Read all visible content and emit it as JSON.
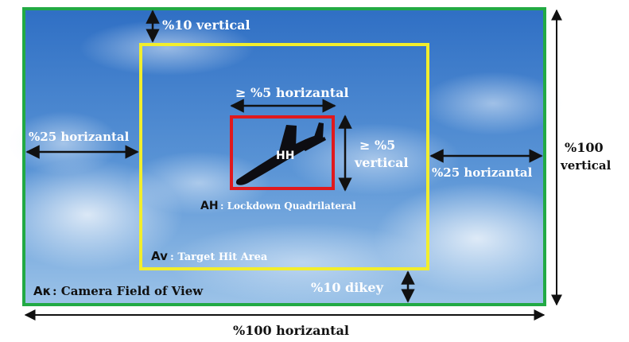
{
  "colors": {
    "camera_border": "#22aa44",
    "target_border": "#f2ee2c",
    "lock_border": "#e0191d",
    "arrow": "#111111",
    "sky_top": "#2f6fc4",
    "sky_bottom": "#9cc3e8",
    "text_light": "#ffffff",
    "text_dark": "#111111"
  },
  "icons": {
    "aircraft": "airplane-silhouette-icon"
  },
  "regions": {
    "camera": {
      "prefix": "Aκ",
      "text": ": Camera Field of View"
    },
    "target": {
      "prefix": "Av",
      "text": ": Target Hit Area"
    },
    "lockdown": {
      "prefix": "AH",
      "text": ": Lockdown Quadrilateral"
    }
  },
  "aircraft_label": "HH",
  "dimensions": {
    "top_vertical": "%10 vertical",
    "left_horizontal": "%25 horizantal",
    "right_horizontal": "%25 horizantal",
    "bottom_dikey": "%10 dikey",
    "lock_horizontal": "≥ %5 horizantal",
    "lock_vertical_1": "≥ %5",
    "lock_vertical_2": "vertical",
    "total_vertical_1": "%100",
    "total_vertical_2": "vertical",
    "total_horizontal": "%100 horizantal"
  }
}
